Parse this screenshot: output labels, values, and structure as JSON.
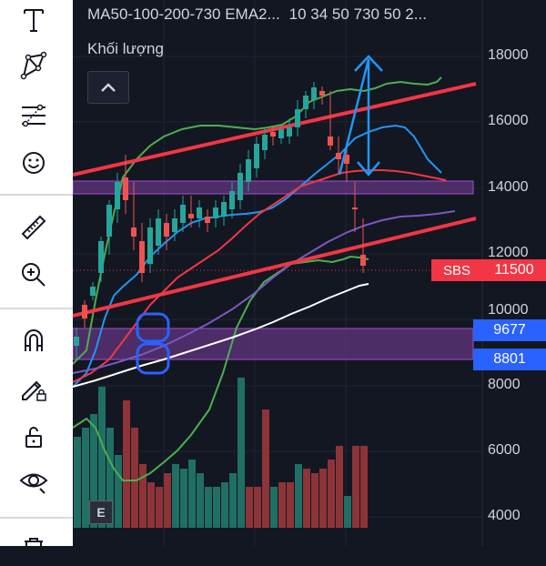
{
  "toolbar": {
    "tools": [
      {
        "name": "text-tool",
        "icon": "text-icon"
      },
      {
        "name": "pattern-tool",
        "icon": "pattern-icon"
      },
      {
        "name": "fib-tool",
        "icon": "fib-retracement-icon"
      },
      {
        "name": "emoji-tool",
        "icon": "smiley-icon"
      },
      {
        "name": "measure-tool",
        "icon": "ruler-icon"
      },
      {
        "name": "zoom-tool",
        "icon": "zoom-in-icon"
      },
      {
        "name": "magnet-tool",
        "icon": "magnet-icon"
      },
      {
        "name": "lock-drawing-tool",
        "icon": "pencil-lock-icon"
      },
      {
        "name": "unlock-tool",
        "icon": "unlock-icon"
      },
      {
        "name": "hide-tool",
        "icon": "eye-icon"
      },
      {
        "name": "delete-tool",
        "icon": "trash-icon"
      }
    ]
  },
  "chart": {
    "indicator_name": "MA50-100-200-730 EMA2...",
    "indicator_values": "10 34 50 730 50 2...",
    "volume_label": "Khối lượng",
    "price_axis": [
      "18000",
      "16000",
      "14000",
      "12000",
      "10000",
      "8000",
      "6000",
      "4000"
    ],
    "symbol_tag": "SBS",
    "last_price": "11500",
    "level_1": "9677",
    "level_2": "8801",
    "e_badge": "E",
    "colors": {
      "up": "#26a69a",
      "down": "#ef5350",
      "trend": "#f23645",
      "zone": "#7b3fa0",
      "ma_green": "#4caf50",
      "ma_blue": "#2196f3",
      "ma_purple": "#7e57c2",
      "ma_white": "#ffffff"
    }
  }
}
